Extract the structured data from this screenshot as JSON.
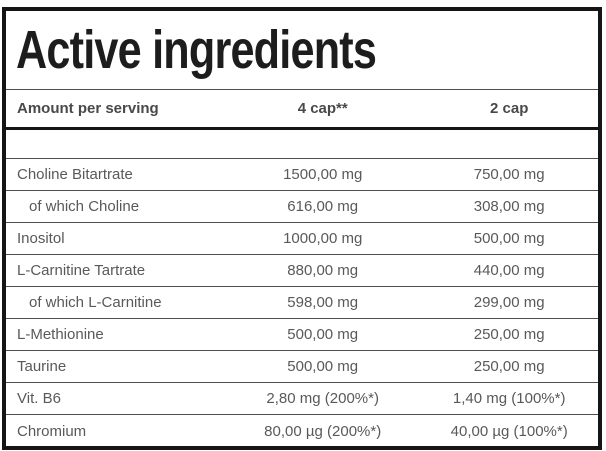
{
  "title": "Active ingredients",
  "table": {
    "columns": {
      "ingredient": "Amount per serving",
      "serving_4cap": "4 cap**",
      "serving_2cap": "2 cap"
    },
    "rows": [
      {
        "ingredient": "Choline Bitartrate",
        "amount_4cap": "1500,00 mg",
        "amount_2cap": "750,00 mg"
      },
      {
        "ingredient": "of which Choline",
        "amount_4cap": "616,00 mg",
        "amount_2cap": "308,00 mg"
      },
      {
        "ingredient": "Inositol",
        "amount_4cap": "1000,00 mg",
        "amount_2cap": "500,00 mg"
      },
      {
        "ingredient": "L-Carnitine Tartrate",
        "amount_4cap": "880,00 mg",
        "amount_2cap": "440,00 mg"
      },
      {
        "ingredient": "of which L-Carnitine",
        "amount_4cap": "598,00 mg",
        "amount_2cap": "299,00 mg"
      },
      {
        "ingredient": "L-Methionine",
        "amount_4cap": "500,00 mg",
        "amount_2cap": "250,00 mg"
      },
      {
        "ingredient": "Taurine",
        "amount_4cap": "500,00 mg",
        "amount_2cap": "250,00 mg"
      },
      {
        "ingredient": "Vit. B6",
        "amount_4cap": "2,80 mg (200%*)",
        "amount_2cap": "1,40 mg (100%*)"
      },
      {
        "ingredient": "Chromium",
        "amount_4cap": "80,00 µg (200%*)",
        "amount_2cap": "40,00 µg (100%*)"
      }
    ]
  },
  "colors": {
    "title_text": "#1d1d1d",
    "header_text": "#48494b",
    "body_text": "#58595b",
    "outer_border": "#151515",
    "row_separator": "#4d4d4d"
  }
}
